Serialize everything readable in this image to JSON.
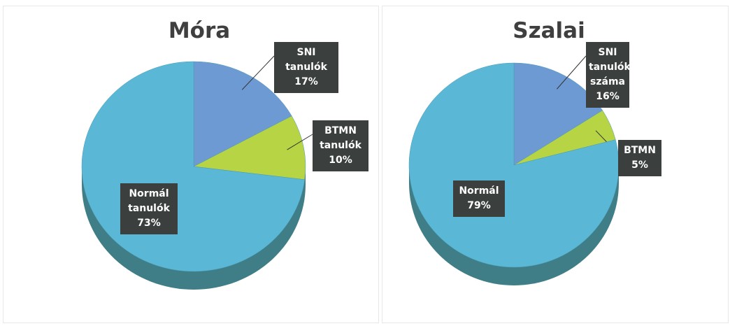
{
  "chart_data": [
    {
      "type": "pie",
      "title": "Móra",
      "categories": [
        "SNI tanulók",
        "BTMN tanulók",
        "Normál tanulók"
      ],
      "values": [
        17,
        10,
        73
      ],
      "value_labels": [
        "17%",
        "10%",
        "73%"
      ],
      "colors": [
        "#6e9ad3",
        "#b6d444",
        "#5bb7d6"
      ]
    },
    {
      "type": "pie",
      "title": "Szalai",
      "categories": [
        "SNI tanulók száma",
        "BTMN",
        "Normál"
      ],
      "values": [
        16,
        5,
        79
      ],
      "value_labels": [
        "16%",
        "5%",
        "79%"
      ],
      "colors": [
        "#6e9ad3",
        "#b6d444",
        "#5bb7d6"
      ]
    }
  ]
}
